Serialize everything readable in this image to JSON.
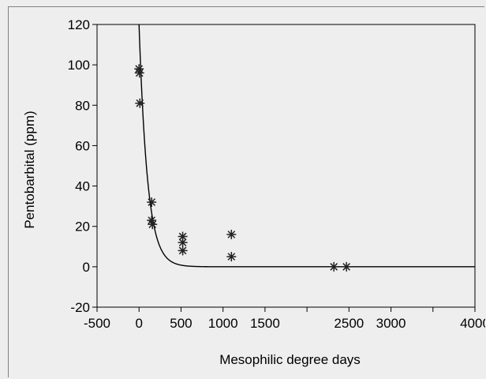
{
  "chart_data": {
    "type": "scatter",
    "title": "",
    "xlabel": "Mesophilic degree days",
    "ylabel": "Pentobarbital (ppm)",
    "xlim": [
      -500,
      4000
    ],
    "ylim": [
      -20,
      120
    ],
    "x_ticks": [
      {
        "value": -500,
        "label": "-500"
      },
      {
        "value": 0,
        "label": "0"
      },
      {
        "value": 500,
        "label": "500"
      },
      {
        "value": 1000,
        "label": "1000"
      },
      {
        "value": 1500,
        "label": "1500"
      },
      {
        "value": 2000,
        "label": ""
      },
      {
        "value": 2500,
        "label": "2500"
      },
      {
        "value": 3000,
        "label": "3000"
      },
      {
        "value": 3500,
        "label": ""
      },
      {
        "value": 4000,
        "label": "4000"
      }
    ],
    "y_ticks": [
      {
        "value": -20,
        "label": "-20"
      },
      {
        "value": 0,
        "label": "0"
      },
      {
        "value": 20,
        "label": "20"
      },
      {
        "value": 40,
        "label": "40"
      },
      {
        "value": 60,
        "label": "60"
      },
      {
        "value": 80,
        "label": "80"
      },
      {
        "value": 100,
        "label": "100"
      },
      {
        "value": 120,
        "label": "120"
      }
    ],
    "grid": false,
    "legend": "none",
    "series": [
      {
        "marker": "asterisk",
        "color": "#222222",
        "points": [
          {
            "x": 0,
            "y": 98
          },
          {
            "x": 5,
            "y": 96
          },
          {
            "x": 10,
            "y": 81
          },
          {
            "x": 150,
            "y": 32
          },
          {
            "x": 150,
            "y": 23
          },
          {
            "x": 160,
            "y": 21
          },
          {
            "x": 520,
            "y": 15
          },
          {
            "x": 520,
            "y": 12
          },
          {
            "x": 520,
            "y": 8
          },
          {
            "x": 1100,
            "y": 16
          },
          {
            "x": 1100,
            "y": 5
          },
          {
            "x": 2320,
            "y": 0
          },
          {
            "x": 2470,
            "y": 0
          }
        ]
      }
    ],
    "fit_curve": {
      "type": "exponential_decay",
      "color": "#000000",
      "formula": "y = 120 * exp(-x / 100)",
      "x_range": [
        0,
        4000
      ]
    }
  }
}
